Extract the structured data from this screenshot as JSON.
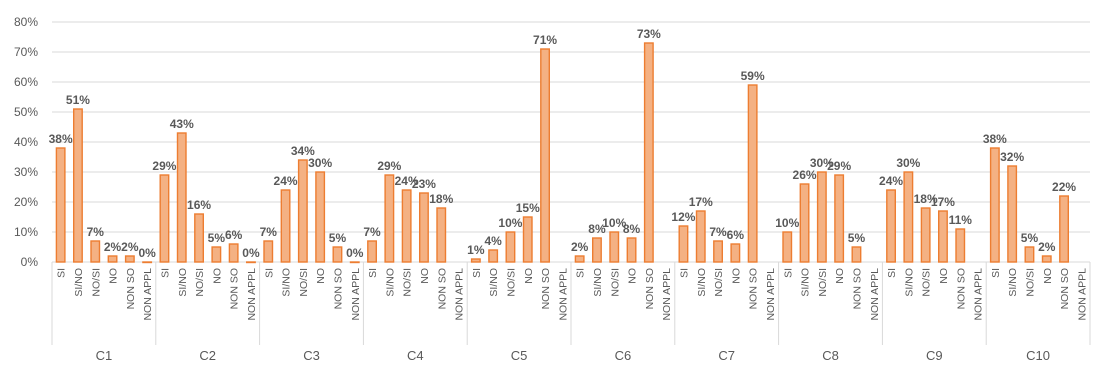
{
  "chart_data": {
    "type": "bar",
    "colors": {
      "bar_fill": "#F4B183",
      "bar_stroke": "#ED7D31",
      "grid": "#d9d9d9",
      "text": "#595959"
    },
    "grid": true,
    "legend": "none",
    "ylim": [
      0,
      80
    ],
    "y_ticks": [
      "0%",
      "10%",
      "20%",
      "30%",
      "40%",
      "50%",
      "60%",
      "70%",
      "80%"
    ],
    "y_tick_values": [
      0,
      10,
      20,
      30,
      40,
      50,
      60,
      70,
      80
    ],
    "categories": [
      "SI",
      "SI/NO",
      "NO/SI",
      "NO",
      "NON SO",
      "NON APPL"
    ],
    "groups": [
      {
        "name": "C1",
        "values": [
          38,
          51,
          7,
          2,
          2,
          0
        ],
        "labels": [
          "38%",
          "51%",
          "7%",
          "2%",
          "2%",
          "0%"
        ]
      },
      {
        "name": "C2",
        "values": [
          29,
          43,
          16,
          5,
          6,
          0
        ],
        "labels": [
          "29%",
          "43%",
          "16%",
          "5%",
          "6%",
          "0%"
        ]
      },
      {
        "name": "C3",
        "values": [
          7,
          24,
          34,
          30,
          5,
          0
        ],
        "labels": [
          "7%",
          "24%",
          "34%",
          "30%",
          "5%",
          "0%"
        ]
      },
      {
        "name": "C4",
        "values": [
          7,
          29,
          24,
          23,
          18,
          null
        ],
        "labels": [
          "7%",
          "29%",
          "24%",
          "23%",
          "18%",
          ""
        ]
      },
      {
        "name": "C5",
        "values": [
          1,
          4,
          10,
          15,
          71,
          null
        ],
        "labels": [
          "1%",
          "4%",
          "10%",
          "15%",
          "71%",
          ""
        ]
      },
      {
        "name": "C6",
        "values": [
          2,
          8,
          10,
          8,
          73,
          null
        ],
        "labels": [
          "2%",
          "8%",
          "10%",
          "8%",
          "73%",
          ""
        ]
      },
      {
        "name": "C7",
        "values": [
          12,
          17,
          7,
          6,
          59,
          null
        ],
        "labels": [
          "12%",
          "17%",
          "7%",
          "6%",
          "59%",
          ""
        ]
      },
      {
        "name": "C8",
        "values": [
          10,
          26,
          30,
          29,
          5,
          null
        ],
        "labels": [
          "10%",
          "26%",
          "30%",
          "29%",
          "5%",
          ""
        ]
      },
      {
        "name": "C9",
        "values": [
          24,
          30,
          18,
          17,
          11,
          null
        ],
        "labels": [
          "24%",
          "30%",
          "18%",
          "17%",
          "11%",
          ""
        ]
      },
      {
        "name": "C10",
        "values": [
          38,
          32,
          5,
          2,
          22,
          null
        ],
        "labels": [
          "38%",
          "32%",
          "5%",
          "2%",
          "22%",
          ""
        ]
      }
    ]
  }
}
